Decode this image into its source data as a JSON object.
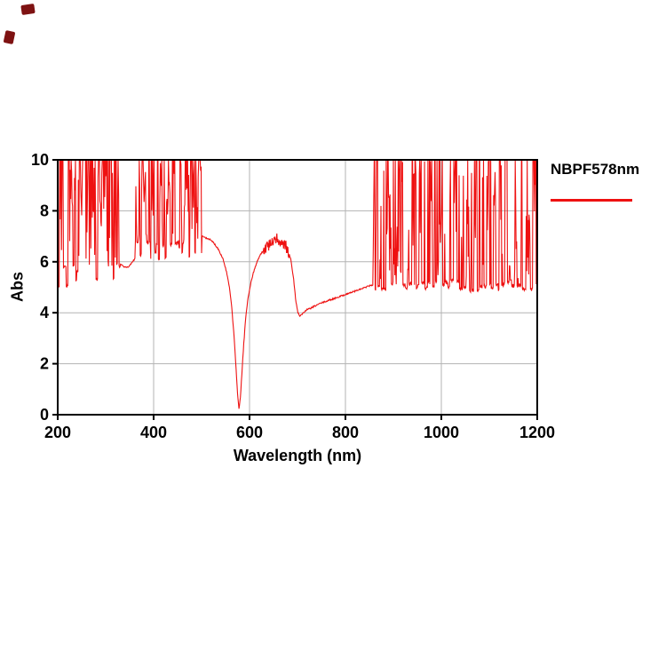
{
  "page": {
    "background": "#ffffff"
  },
  "corner_marks": {
    "color": "#7e1212"
  },
  "chart_data": {
    "type": "line",
    "title": "",
    "xlabel": "Wavelength (nm)",
    "ylabel": "Abs",
    "xlim": [
      200,
      1200
    ],
    "ylim": [
      0,
      10
    ],
    "x_ticks": [
      200,
      400,
      600,
      800,
      1000,
      1200
    ],
    "y_ticks": [
      0,
      2,
      4,
      6,
      8,
      10
    ],
    "grid": true,
    "grid_color": "#b3b3b3",
    "axis_color": "#000000",
    "legend": {
      "label": "NBPF578nm",
      "color": "#ee1111",
      "position": "top-right-outside"
    },
    "series": [
      {
        "name": "NBPF578nm",
        "color": "#ee1111",
        "noise_seed": 7,
        "backbone": [
          [
            200,
            7.8
          ],
          [
            240,
            7.5
          ],
          [
            270,
            7.1
          ],
          [
            300,
            6.7
          ],
          [
            318,
            6.3
          ],
          [
            330,
            5.95
          ],
          [
            338,
            5.78
          ],
          [
            348,
            5.8
          ],
          [
            358,
            6.05
          ],
          [
            368,
            6.3
          ],
          [
            385,
            6.5
          ],
          [
            400,
            6.65
          ],
          [
            420,
            6.8
          ],
          [
            440,
            6.95
          ],
          [
            465,
            7.0
          ],
          [
            485,
            6.95
          ],
          [
            500,
            7.0
          ],
          [
            515,
            6.9
          ],
          [
            525,
            6.75
          ],
          [
            535,
            6.5
          ],
          [
            545,
            6.1
          ],
          [
            552,
            5.6
          ],
          [
            558,
            5.0
          ],
          [
            563,
            4.2
          ],
          [
            568,
            3.0
          ],
          [
            572,
            1.8
          ],
          [
            575,
            0.8
          ],
          [
            578,
            0.22
          ],
          [
            581,
            0.7
          ],
          [
            584,
            1.6
          ],
          [
            588,
            2.8
          ],
          [
            592,
            3.8
          ],
          [
            597,
            4.6
          ],
          [
            603,
            5.2
          ],
          [
            610,
            5.7
          ],
          [
            618,
            6.1
          ],
          [
            626,
            6.4
          ],
          [
            634,
            6.55
          ],
          [
            642,
            6.65
          ],
          [
            650,
            6.75
          ],
          [
            656,
            6.88
          ],
          [
            662,
            6.8
          ],
          [
            668,
            6.75
          ],
          [
            674,
            6.6
          ],
          [
            680,
            6.45
          ],
          [
            686,
            6.1
          ],
          [
            692,
            5.3
          ],
          [
            697,
            4.4
          ],
          [
            701,
            4.0
          ],
          [
            705,
            3.88
          ],
          [
            710,
            3.95
          ],
          [
            718,
            4.1
          ],
          [
            730,
            4.2
          ],
          [
            745,
            4.35
          ],
          [
            760,
            4.45
          ],
          [
            775,
            4.55
          ],
          [
            790,
            4.65
          ],
          [
            805,
            4.75
          ],
          [
            820,
            4.85
          ],
          [
            835,
            4.95
          ],
          [
            850,
            5.05
          ],
          [
            858,
            5.1
          ],
          [
            900,
            5.15
          ],
          [
            950,
            5.2
          ],
          [
            1000,
            5.3
          ],
          [
            1050,
            5.35
          ],
          [
            1100,
            5.4
          ],
          [
            1150,
            5.45
          ],
          [
            1200,
            5.5
          ]
        ],
        "noise_bands": [
          {
            "x_start": 200,
            "x_end": 330,
            "lo_base": 5.0,
            "lo_jitter": 1.0,
            "p_top": 0.45,
            "p_quiet": 0.1,
            "quiet_max": 3
          },
          {
            "x_start": 362,
            "x_end": 500,
            "lo_base": 6.1,
            "lo_jitter": 0.7,
            "p_top": 0.42,
            "p_quiet": 0.1,
            "quiet_max": 3
          },
          {
            "x_start": 858,
            "x_end": 1200,
            "lo_base": 4.85,
            "lo_jitter": 0.45,
            "p_top": 0.32,
            "p_quiet": 0.18,
            "quiet_max": 5
          }
        ],
        "micro_noise": [
          {
            "x_start": 628,
            "x_end": 682,
            "amplitude": 0.5
          }
        ],
        "key_points": {
          "passband_center_nm": 578,
          "passband_min_abs": 0.2,
          "secondary_min_nm": 703,
          "secondary_min_abs": 3.9,
          "blocking_abs_range": [
            5,
            10
          ]
        }
      }
    ]
  }
}
